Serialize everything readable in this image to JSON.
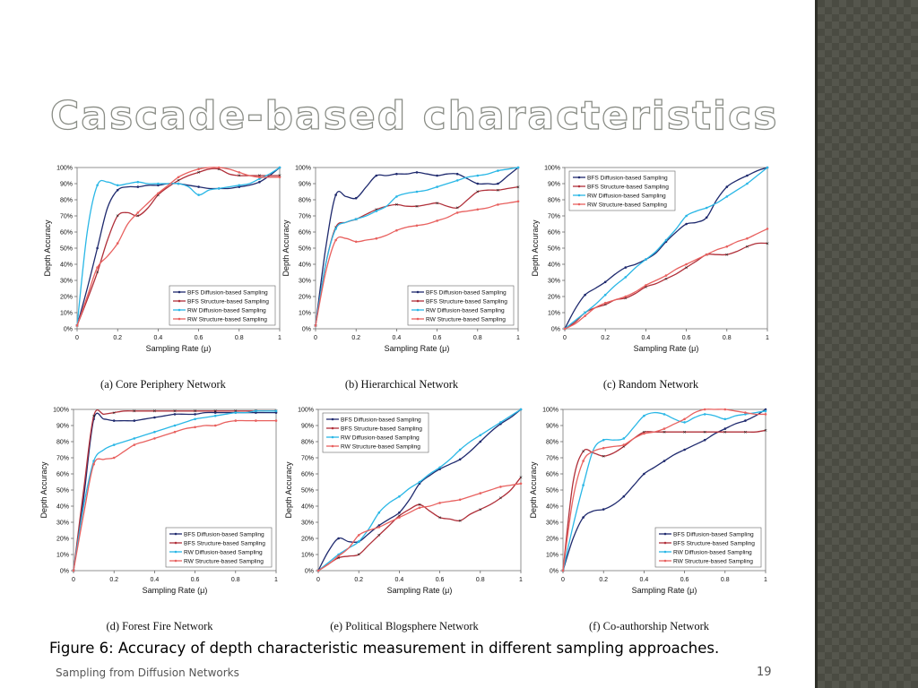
{
  "slide": {
    "title": "Cascade-based characteristics",
    "caption": "Figure 6: Accuracy of depth characteristic measurement in different sampling approaches.",
    "footer": "Sampling from Diffusion Networks",
    "page_number": "19"
  },
  "colors": {
    "BFS Diffusion-based Sampling": "#1f2a6e",
    "BFS Structure-based Sampling": "#b0303a",
    "RW Diffusion-based Sampling": "#2ab7e6",
    "RW Structure-based Sampling": "#e8615f",
    "sidebar": "#4a4b42"
  },
  "chart_data": [
    {
      "type": "line",
      "caption": "(a) Core Periphery Network",
      "xlabel": "Sampling Rate (μ)",
      "ylabel": "Depth Accuracy",
      "xlim": [
        0,
        1
      ],
      "ylim": [
        0,
        100
      ],
      "xticks": [
        "0",
        "0.2",
        "0.4",
        "0.6",
        "0.8",
        "1"
      ],
      "yticks": [
        "0%",
        "10%",
        "20%",
        "30%",
        "40%",
        "50%",
        "60%",
        "70%",
        "80%",
        "90%",
        "100%"
      ],
      "legend_position": "bottom-right",
      "x": [
        0,
        0.05,
        0.1,
        0.15,
        0.2,
        0.25,
        0.3,
        0.35,
        0.4,
        0.45,
        0.5,
        0.55,
        0.6,
        0.65,
        0.7,
        0.75,
        0.8,
        0.85,
        0.9,
        0.95,
        1
      ],
      "series": [
        {
          "name": "BFS Diffusion-based Sampling",
          "values": [
            2,
            25,
            50,
            75,
            86,
            88,
            88,
            89,
            89,
            90,
            90,
            89,
            88,
            87,
            87,
            87,
            88,
            89,
            91,
            95,
            100
          ]
        },
        {
          "name": "BFS Structure-based Sampling",
          "values": [
            2,
            18,
            35,
            55,
            70,
            72,
            70,
            75,
            83,
            88,
            92,
            95,
            97,
            99,
            99,
            96,
            95,
            95,
            95,
            95,
            95
          ]
        },
        {
          "name": "RW Diffusion-based Sampling",
          "values": [
            2,
            60,
            89,
            91,
            89,
            90,
            91,
            90,
            90,
            90,
            90,
            88,
            83,
            86,
            87,
            88,
            89,
            90,
            93,
            96,
            100
          ]
        },
        {
          "name": "RW Structure-based Sampling",
          "values": [
            2,
            20,
            38,
            45,
            53,
            65,
            72,
            78,
            84,
            89,
            94,
            97,
            99,
            100,
            100,
            99,
            97,
            95,
            94,
            94,
            94
          ]
        }
      ]
    },
    {
      "type": "line",
      "caption": "(b) Hierarchical Network",
      "xlabel": "Sampling Rate (μ)",
      "ylabel": "Depth Accuracy",
      "xlim": [
        0,
        1
      ],
      "ylim": [
        0,
        100
      ],
      "xticks": [
        "0",
        "0.2",
        "0.4",
        "0.6",
        "0.8",
        "1"
      ],
      "yticks": [
        "0%",
        "10%",
        "20%",
        "30%",
        "40%",
        "50%",
        "60%",
        "70%",
        "80%",
        "90%",
        "100%"
      ],
      "legend_position": "bottom-right",
      "x": [
        0,
        0.05,
        0.1,
        0.15,
        0.2,
        0.25,
        0.3,
        0.35,
        0.4,
        0.45,
        0.5,
        0.55,
        0.6,
        0.65,
        0.7,
        0.75,
        0.8,
        0.85,
        0.9,
        0.95,
        1
      ],
      "series": [
        {
          "name": "BFS Diffusion-based Sampling",
          "values": [
            2,
            50,
            83,
            82,
            81,
            88,
            95,
            95,
            96,
            96,
            97,
            96,
            95,
            96,
            96,
            93,
            90,
            90,
            90,
            95,
            100
          ]
        },
        {
          "name": "BFS Structure-based Sampling",
          "values": [
            2,
            40,
            63,
            66,
            68,
            71,
            74,
            76,
            77,
            76,
            76,
            77,
            78,
            76,
            75,
            80,
            85,
            86,
            86,
            87,
            88
          ]
        },
        {
          "name": "RW Diffusion-based Sampling",
          "values": [
            2,
            40,
            62,
            66,
            68,
            70,
            73,
            76,
            82,
            84,
            85,
            86,
            88,
            90,
            92,
            94,
            95,
            96,
            98,
            99,
            100
          ]
        },
        {
          "name": "RW Structure-based Sampling",
          "values": [
            2,
            35,
            55,
            56,
            54,
            55,
            56,
            58,
            61,
            63,
            64,
            65,
            67,
            69,
            72,
            73,
            74,
            75,
            77,
            78,
            79
          ]
        }
      ]
    },
    {
      "type": "line",
      "caption": "(c) Random Network",
      "xlabel": "Sampling Rate (μ)",
      "ylabel": "Depth Accuracy",
      "xlim": [
        0,
        1
      ],
      "ylim": [
        0,
        100
      ],
      "xticks": [
        "0",
        "0.2",
        "0.4",
        "0.6",
        "0.8",
        "1"
      ],
      "yticks": [
        "0%",
        "10%",
        "20%",
        "30%",
        "40%",
        "50%",
        "60%",
        "70%",
        "80%",
        "90%",
        "100%"
      ],
      "legend_position": "top-left",
      "x": [
        0,
        0.05,
        0.1,
        0.15,
        0.2,
        0.25,
        0.3,
        0.35,
        0.4,
        0.45,
        0.5,
        0.55,
        0.6,
        0.65,
        0.7,
        0.75,
        0.8,
        0.85,
        0.9,
        0.95,
        1
      ],
      "series": [
        {
          "name": "BFS Diffusion-based Sampling",
          "values": [
            0,
            12,
            21,
            25,
            29,
            34,
            38,
            40,
            43,
            47,
            54,
            60,
            65,
            66,
            69,
            80,
            88,
            92,
            95,
            98,
            100
          ]
        },
        {
          "name": "BFS Structure-based Sampling",
          "values": [
            0,
            4,
            10,
            13,
            15,
            18,
            19,
            22,
            26,
            28,
            31,
            34,
            38,
            42,
            46,
            46,
            46,
            48,
            51,
            53,
            53
          ]
        },
        {
          "name": "RW Diffusion-based Sampling",
          "values": [
            0,
            5,
            10,
            15,
            21,
            27,
            32,
            38,
            43,
            48,
            55,
            62,
            70,
            73,
            75,
            78,
            82,
            86,
            90,
            95,
            100
          ]
        },
        {
          "name": "RW Structure-based Sampling",
          "values": [
            0,
            3,
            8,
            13,
            16,
            18,
            20,
            23,
            27,
            30,
            33,
            37,
            40,
            43,
            46,
            49,
            51,
            54,
            56,
            59,
            62
          ]
        }
      ]
    },
    {
      "type": "line",
      "caption": "(d) Forest Fire Network",
      "xlabel": "Sampling Rate (μ)",
      "ylabel": "Depth Accuracy",
      "xlim": [
        0,
        1
      ],
      "ylim": [
        0,
        100
      ],
      "xticks": [
        "0",
        "0.2",
        "0.4",
        "0.6",
        "0.8",
        "1"
      ],
      "yticks": [
        "0%",
        "10%",
        "20%",
        "30%",
        "40%",
        "50%",
        "60%",
        "70%",
        "80%",
        "90%",
        "100%"
      ],
      "legend_position": "bottom-right",
      "x": [
        0,
        0.05,
        0.1,
        0.15,
        0.2,
        0.25,
        0.3,
        0.35,
        0.4,
        0.45,
        0.5,
        0.55,
        0.6,
        0.65,
        0.7,
        0.75,
        0.8,
        0.85,
        0.9,
        0.95,
        1
      ],
      "series": [
        {
          "name": "BFS Diffusion-based Sampling",
          "values": [
            0,
            45,
            94,
            94,
            93,
            93,
            93,
            94,
            95,
            96,
            97,
            97,
            97,
            98,
            98,
            98,
            98,
            98,
            98,
            98,
            98
          ]
        },
        {
          "name": "BFS Structure-based Sampling",
          "values": [
            0,
            50,
            96,
            97,
            98,
            99,
            99,
            99,
            99,
            99,
            99,
            99,
            99,
            99,
            99,
            99,
            99,
            99,
            99,
            99,
            99
          ]
        },
        {
          "name": "RW Diffusion-based Sampling",
          "values": [
            0,
            40,
            68,
            75,
            78,
            80,
            82,
            84,
            86,
            88,
            90,
            92,
            94,
            95,
            96,
            97,
            98,
            98,
            99,
            99,
            99
          ]
        },
        {
          "name": "RW Structure-based Sampling",
          "values": [
            0,
            35,
            66,
            69,
            70,
            74,
            78,
            80,
            82,
            84,
            86,
            88,
            89,
            90,
            90,
            92,
            93,
            93,
            93,
            93,
            93
          ]
        }
      ]
    },
    {
      "type": "line",
      "caption": "(e) Political Blogsphere Network",
      "xlabel": "Sampling Rate (μ)",
      "ylabel": "Depth Accuracy",
      "xlim": [
        0,
        1
      ],
      "ylim": [
        0,
        100
      ],
      "xticks": [
        "0",
        "0.2",
        "0.4",
        "0.6",
        "0.8",
        "1"
      ],
      "yticks": [
        "0%",
        "10%",
        "20%",
        "30%",
        "40%",
        "50%",
        "60%",
        "70%",
        "80%",
        "90%",
        "100%"
      ],
      "legend_position": "top-left",
      "x": [
        0,
        0.05,
        0.1,
        0.15,
        0.2,
        0.25,
        0.3,
        0.35,
        0.4,
        0.45,
        0.5,
        0.55,
        0.6,
        0.65,
        0.7,
        0.75,
        0.8,
        0.85,
        0.9,
        0.95,
        1
      ],
      "series": [
        {
          "name": "BFS Diffusion-based Sampling",
          "values": [
            0,
            12,
            20,
            18,
            18,
            23,
            28,
            32,
            36,
            44,
            54,
            59,
            63,
            66,
            69,
            74,
            80,
            86,
            91,
            95,
            100
          ]
        },
        {
          "name": "BFS Structure-based Sampling",
          "values": [
            0,
            4,
            8,
            9,
            10,
            16,
            22,
            28,
            34,
            38,
            41,
            37,
            33,
            32,
            31,
            35,
            38,
            41,
            45,
            50,
            58
          ]
        },
        {
          "name": "RW Diffusion-based Sampling",
          "values": [
            0,
            5,
            10,
            14,
            18,
            26,
            36,
            42,
            46,
            51,
            55,
            60,
            64,
            69,
            75,
            80,
            84,
            88,
            92,
            96,
            100
          ]
        },
        {
          "name": "RW Structure-based Sampling",
          "values": [
            0,
            4,
            9,
            14,
            22,
            25,
            27,
            30,
            33,
            36,
            39,
            40,
            42,
            43,
            44,
            46,
            48,
            50,
            52,
            53,
            54
          ]
        }
      ]
    },
    {
      "type": "line",
      "caption": "(f) Co-authorship Network",
      "xlabel": "Sampling Rate (μ)",
      "ylabel": "Depth Accuracy",
      "xlim": [
        0,
        1
      ],
      "ylim": [
        0,
        100
      ],
      "xticks": [
        "0",
        "0.2",
        "0.4",
        "0.6",
        "0.8",
        "1"
      ],
      "yticks": [
        "0%",
        "10%",
        "20%",
        "30%",
        "40%",
        "50%",
        "60%",
        "70%",
        "80%",
        "90%",
        "100%"
      ],
      "legend_position": "bottom-right",
      "x": [
        0,
        0.05,
        0.1,
        0.15,
        0.2,
        0.25,
        0.3,
        0.35,
        0.4,
        0.45,
        0.5,
        0.55,
        0.6,
        0.65,
        0.7,
        0.75,
        0.8,
        0.85,
        0.9,
        0.95,
        1
      ],
      "series": [
        {
          "name": "BFS Diffusion-based Sampling",
          "values": [
            0,
            20,
            33,
            37,
            38,
            41,
            46,
            53,
            60,
            64,
            68,
            72,
            75,
            78,
            81,
            85,
            88,
            91,
            93,
            96,
            100
          ]
        },
        {
          "name": "BFS Structure-based Sampling",
          "values": [
            0,
            55,
            74,
            73,
            71,
            73,
            77,
            82,
            86,
            86,
            86,
            86,
            86,
            86,
            86,
            86,
            86,
            86,
            86,
            86,
            87
          ]
        },
        {
          "name": "RW Diffusion-based Sampling",
          "values": [
            0,
            28,
            53,
            75,
            81,
            81,
            82,
            89,
            96,
            98,
            97,
            94,
            92,
            95,
            97,
            96,
            94,
            96,
            97,
            98,
            99
          ]
        },
        {
          "name": "RW Structure-based Sampling",
          "values": [
            0,
            45,
            68,
            74,
            76,
            77,
            78,
            82,
            85,
            86,
            88,
            91,
            94,
            98,
            100,
            100,
            100,
            99,
            98,
            97,
            97
          ]
        }
      ]
    }
  ]
}
